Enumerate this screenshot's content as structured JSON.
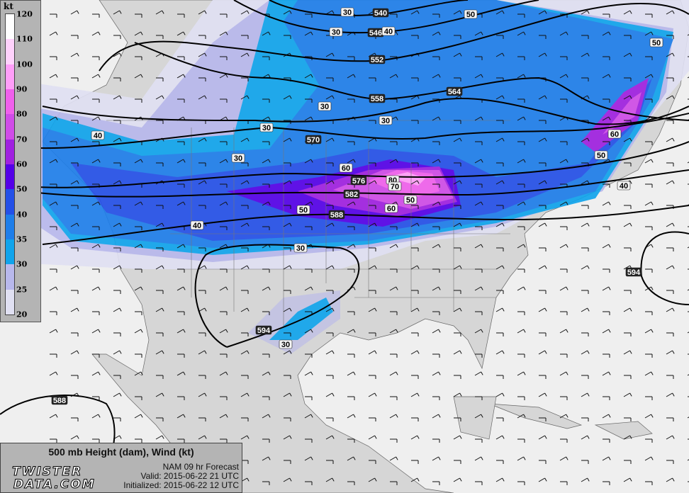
{
  "product": {
    "title": "500 mb Height (dam), Wind (kt)",
    "model": "NAM 09 hr Forecast",
    "valid": "Valid: 2015-06-22 21 UTC",
    "initialized": "Initialized: 2015-06-22 12 UTC",
    "logo_line1": "TWISTER",
    "logo_line2": "DATA.COM"
  },
  "legend": {
    "unit": "kt",
    "ticks": [
      "20",
      "25",
      "30",
      "35",
      "40",
      "50",
      "60",
      "70",
      "80",
      "90",
      "100",
      "110",
      "120"
    ],
    "colors": [
      "#e0e0f2",
      "#b8b8ec",
      "#10a4ec",
      "#1e7eea",
      "#2450e8",
      "#5400e8",
      "#a020e0",
      "#d04ce8",
      "#f060ec",
      "#ff9ef8",
      "#ffd2fc",
      "#ffffff"
    ]
  },
  "map": {
    "ocean_color": "#efefef",
    "land_color": "#d6d6d6",
    "height_labels": [
      {
        "text": "540",
        "lon": -93.5,
        "lat": 52.5
      },
      {
        "text": "546",
        "lon": -94,
        "lat": 50.5
      },
      {
        "text": "552",
        "lon": -94,
        "lat": 48.5
      },
      {
        "text": "558",
        "lon": -94,
        "lat": 46
      },
      {
        "text": "564",
        "lon": -86,
        "lat": 46.5
      },
      {
        "text": "570",
        "lon": -101,
        "lat": 43
      },
      {
        "text": "576",
        "lon": -97,
        "lat": 40.5
      },
      {
        "text": "582",
        "lon": -97.5,
        "lat": 40
      },
      {
        "text": "588",
        "lon": -99,
        "lat": 38.5
      },
      {
        "text": "594",
        "lon": -106,
        "lat": 31
      },
      {
        "text": "594",
        "lon": -69,
        "lat": 34
      },
      {
        "text": "588",
        "lon": -127,
        "lat": 25
      }
    ],
    "speed_labels": [
      {
        "text": "30"
      },
      {
        "text": "30"
      },
      {
        "text": "40"
      },
      {
        "text": "50"
      },
      {
        "text": "50"
      },
      {
        "text": "30"
      },
      {
        "text": "30"
      },
      {
        "text": "30"
      },
      {
        "text": "40"
      },
      {
        "text": "30"
      },
      {
        "text": "60"
      },
      {
        "text": "80"
      },
      {
        "text": "70"
      },
      {
        "text": "50"
      },
      {
        "text": "60"
      },
      {
        "text": "50"
      },
      {
        "text": "40"
      },
      {
        "text": "30"
      },
      {
        "text": "60"
      },
      {
        "text": "50"
      },
      {
        "text": "40"
      },
      {
        "text": "30"
      }
    ]
  }
}
